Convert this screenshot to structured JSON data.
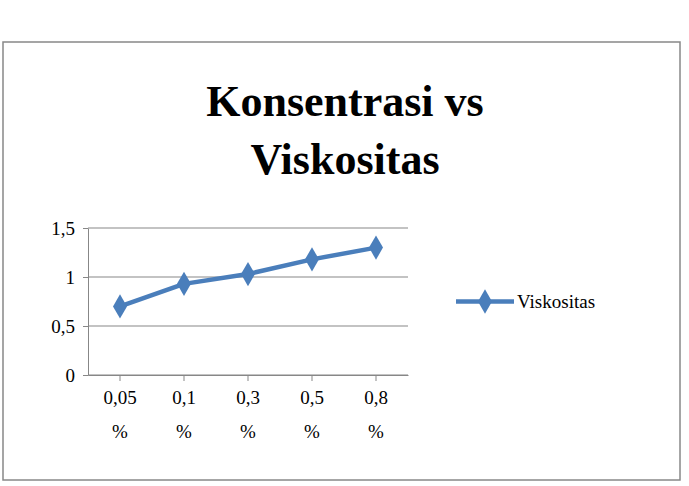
{
  "chart_data": {
    "type": "line",
    "title": "Konsentrasi vs Viskositas",
    "categories": [
      "0,05 %",
      "0,1 %",
      "0,3 %",
      "0,5 %",
      "0,8 %"
    ],
    "series": [
      {
        "name": "Viskositas",
        "color": "#4a7ebb",
        "marker": "diamond",
        "values": [
          0.7,
          0.93,
          1.03,
          1.18,
          1.3
        ]
      }
    ],
    "ylim": [
      0,
      1.5
    ],
    "yticks": [
      0,
      {
        "value": 0.5,
        "label": "0,5"
      },
      1,
      {
        "value": 1.5,
        "label": "1,5"
      }
    ],
    "grid": true,
    "legend": "right"
  }
}
